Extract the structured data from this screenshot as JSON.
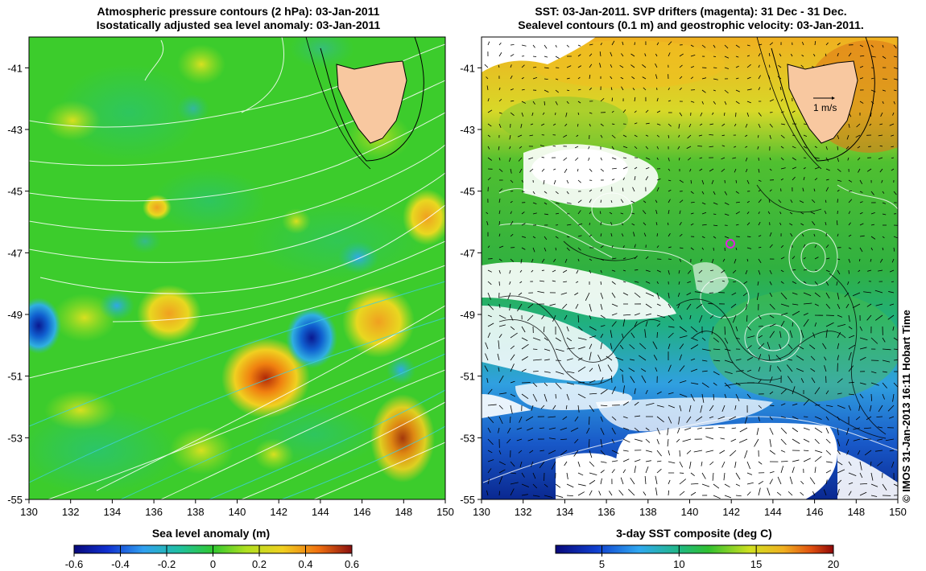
{
  "left_panel": {
    "title_line1": "Atmospheric pressure contours (2 hPa): 03-Jan-2011",
    "title_line2": "Isostatically adjusted sea level anomaly: 03-Jan-2011",
    "x_ticks": [
      "130",
      "132",
      "134",
      "136",
      "138",
      "140",
      "142",
      "144",
      "146",
      "148",
      "150"
    ],
    "y_ticks": [
      "-41",
      "-43",
      "-45",
      "-47",
      "-49",
      "-51",
      "-53",
      "-55"
    ],
    "colorbar_label": "Sea level anomaly (m)",
    "colorbar_ticks": [
      "-0.6",
      "-0.4",
      "-0.2",
      "0",
      "0.2",
      "0.4",
      "0.6"
    ]
  },
  "right_panel": {
    "title_line1": "SST: 03-Jan-2011. SVP drifters (magenta): 31 Dec - 31 Dec.",
    "title_line2": "Sealevel contours (0.1 m) and geostrophic velocity: 03-Jan-2011.",
    "x_ticks": [
      "130",
      "132",
      "134",
      "136",
      "138",
      "140",
      "142",
      "144",
      "146",
      "148",
      "150"
    ],
    "y_ticks": [
      "-41",
      "-43",
      "-45",
      "-47",
      "-49",
      "-51",
      "-53",
      "-55"
    ],
    "vector_scale_label": "1 m/s",
    "colorbar_label": "3-day SST composite (deg C)",
    "colorbar_ticks": [
      "5",
      "10",
      "15",
      "20"
    ]
  },
  "credit": "© IMOS 31-Jan-2013 16:11 Hobart Time",
  "map_data": {
    "lon_range": [
      130,
      150
    ],
    "lat_range": [
      -55,
      -40
    ],
    "sla_range": [
      -0.6,
      0.6
    ],
    "sst_range": [
      2,
      20
    ],
    "colors": {
      "land": "#f8c8a0",
      "sla_background": "#3ccc2c",
      "sst_north": "#f0a020",
      "sst_mid": "#30b830",
      "sst_south": "#1060d0",
      "pressure_contour": "#ffffff",
      "drifter": "#e020e0"
    }
  }
}
